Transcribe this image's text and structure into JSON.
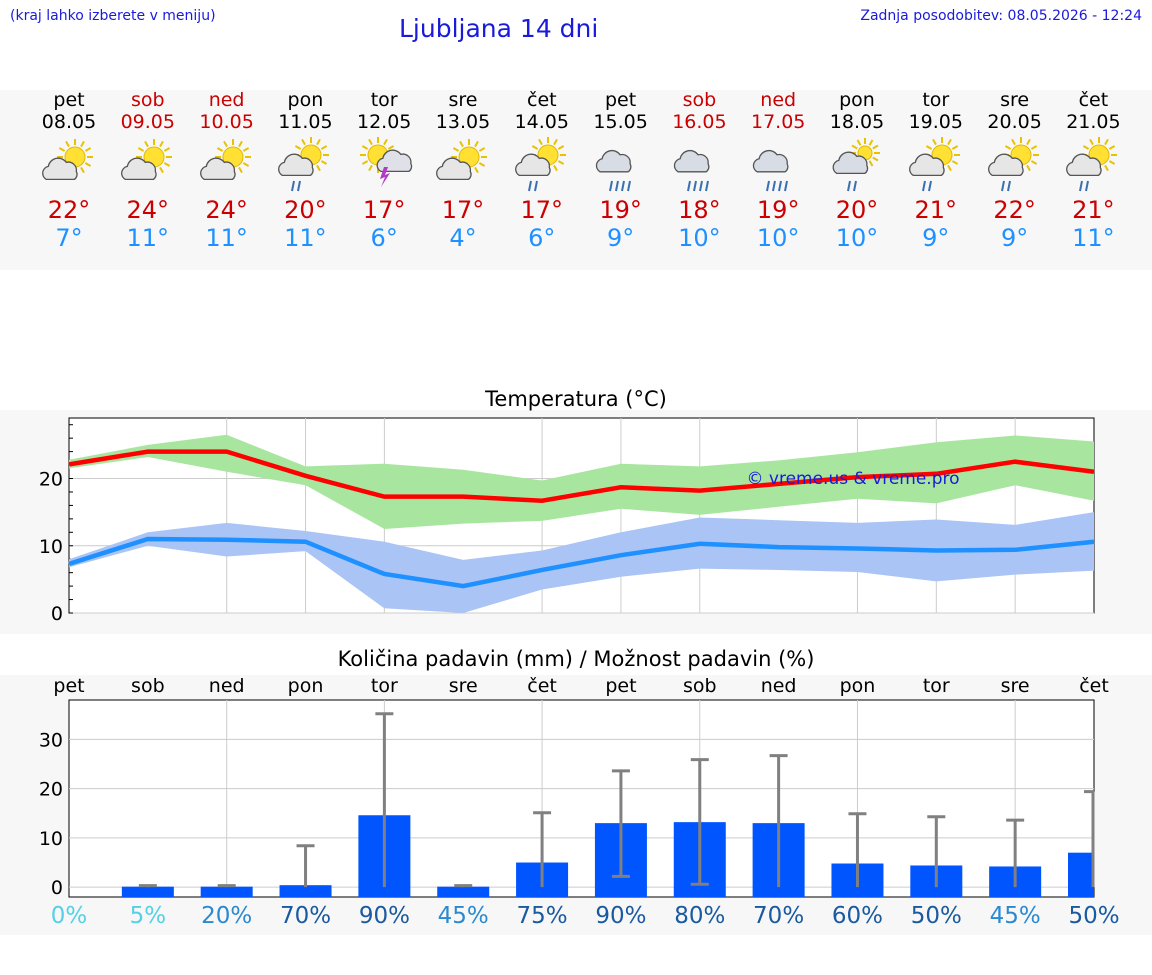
{
  "header": {
    "hint": "(kraj lahko izberete v meniju)",
    "title": "Ljubljana 14 dni",
    "updated": "Zadnja posodobitev: 08.05.2026 - 12:24"
  },
  "colors": {
    "weekday": "#000000",
    "weekend": "#cc0000",
    "temp_max": "#cc0000",
    "temp_min": "#1e90ff",
    "link": "#1a1adc"
  },
  "days": [
    {
      "name": "pet",
      "date": "08.05",
      "hi": "22°",
      "lo": "7°",
      "weekend": false,
      "icon": "sun-cloud-icon"
    },
    {
      "name": "sob",
      "date": "09.05",
      "hi": "24°",
      "lo": "11°",
      "weekend": true,
      "icon": "sun-cloud-icon"
    },
    {
      "name": "ned",
      "date": "10.05",
      "hi": "24°",
      "lo": "11°",
      "weekend": true,
      "icon": "sun-cloud-icon"
    },
    {
      "name": "pon",
      "date": "11.05",
      "hi": "20°",
      "lo": "11°",
      "weekend": false,
      "icon": "sun-rain-icon"
    },
    {
      "name": "tor",
      "date": "12.05",
      "hi": "17°",
      "lo": "6°",
      "weekend": false,
      "icon": "sun-thunder-icon"
    },
    {
      "name": "sre",
      "date": "13.05",
      "hi": "17°",
      "lo": "4°",
      "weekend": false,
      "icon": "sun-cloud-icon"
    },
    {
      "name": "čet",
      "date": "14.05",
      "hi": "17°",
      "lo": "6°",
      "weekend": false,
      "icon": "sun-rain-icon"
    },
    {
      "name": "pet",
      "date": "15.05",
      "hi": "19°",
      "lo": "9°",
      "weekend": false,
      "icon": "heavy-rain-icon"
    },
    {
      "name": "sob",
      "date": "16.05",
      "hi": "18°",
      "lo": "10°",
      "weekend": true,
      "icon": "heavy-rain-icon"
    },
    {
      "name": "ned",
      "date": "17.05",
      "hi": "19°",
      "lo": "10°",
      "weekend": true,
      "icon": "heavy-rain-icon"
    },
    {
      "name": "pon",
      "date": "18.05",
      "hi": "20°",
      "lo": "10°",
      "weekend": false,
      "icon": "cloud-rain-icon"
    },
    {
      "name": "tor",
      "date": "19.05",
      "hi": "21°",
      "lo": "9°",
      "weekend": false,
      "icon": "sun-rain-icon"
    },
    {
      "name": "sre",
      "date": "20.05",
      "hi": "22°",
      "lo": "9°",
      "weekend": false,
      "icon": "sun-rain-icon"
    },
    {
      "name": "čet",
      "date": "21.05",
      "hi": "21°",
      "lo": "11°",
      "weekend": false,
      "icon": "sun-rain-icon"
    }
  ],
  "chart_data": [
    {
      "type": "line",
      "title": "Temperatura (°C)",
      "watermark": "© vreme.us & vreme.pro",
      "x": [
        "08.05",
        "09.05",
        "10.05",
        "11.05",
        "12.05",
        "13.05",
        "14.05",
        "15.05",
        "16.05",
        "17.05",
        "18.05",
        "19.05",
        "20.05",
        "21.05"
      ],
      "ylim": [
        0,
        29
      ],
      "yticks": [
        0,
        10,
        20
      ],
      "grid": true,
      "series": [
        {
          "role": "max",
          "color": "#ff0000",
          "values": [
            22.1,
            24.0,
            24.0,
            20.4,
            17.3,
            17.3,
            16.7,
            18.7,
            18.2,
            19.2,
            20.2,
            20.7,
            22.5,
            21.0
          ]
        },
        {
          "role": "max-range",
          "color": "#a8e6a0",
          "low": [
            21.5,
            23.2,
            21.0,
            19.0,
            12.5,
            13.3,
            13.7,
            15.5,
            14.6,
            15.8,
            17.0,
            16.3,
            19.0,
            16.7
          ],
          "high": [
            22.8,
            25.0,
            26.5,
            21.8,
            22.2,
            21.3,
            19.7,
            22.2,
            21.8,
            22.7,
            23.9,
            25.4,
            26.4,
            25.5
          ]
        },
        {
          "role": "min",
          "color": "#1e90ff",
          "values": [
            7.3,
            11.0,
            10.9,
            10.6,
            5.8,
            4.0,
            6.4,
            8.6,
            10.3,
            9.8,
            9.6,
            9.3,
            9.4,
            10.6
          ]
        },
        {
          "role": "min-range",
          "color": "#a9c4f5",
          "low": [
            6.8,
            10.0,
            8.4,
            9.2,
            0.7,
            0.0,
            3.5,
            5.4,
            6.6,
            6.4,
            6.1,
            4.7,
            5.7,
            6.3
          ],
          "high": [
            8.0,
            12.0,
            13.4,
            12.2,
            10.6,
            7.9,
            9.3,
            12.0,
            14.2,
            13.8,
            13.4,
            13.9,
            13.1,
            15.0
          ]
        }
      ]
    },
    {
      "type": "bar",
      "title": "Količina padavin (mm) / Možnost padavin (%)",
      "categories": [
        "pet",
        "sob",
        "ned",
        "pon",
        "tor",
        "sre",
        "čet",
        "pet",
        "sob",
        "ned",
        "pon",
        "tor",
        "sre",
        "čet"
      ],
      "ylim": [
        -2,
        38
      ],
      "yticks": [
        0,
        10,
        20,
        30
      ],
      "grid": true,
      "bar_color": "#0055ff",
      "values": [
        0.0,
        0.1,
        0.1,
        0.4,
        14.6,
        0.1,
        5.0,
        13.0,
        13.2,
        13.0,
        4.8,
        4.4,
        4.2,
        7.0
      ],
      "error_low": [
        0.0,
        0.0,
        0.0,
        0.0,
        0.0,
        0.0,
        0.0,
        2.2,
        0.6,
        0.0,
        0.0,
        0.0,
        0.0,
        0.0
      ],
      "error_high": [
        0.0,
        0.3,
        0.3,
        8.4,
        35.2,
        0.3,
        15.1,
        23.6,
        25.9,
        26.7,
        14.9,
        14.3,
        13.6,
        19.4
      ],
      "chance": [
        "0%",
        "5%",
        "20%",
        "70%",
        "90%",
        "45%",
        "75%",
        "90%",
        "80%",
        "70%",
        "60%",
        "50%",
        "45%",
        "50%"
      ],
      "chance_colors": [
        "#55d0e6",
        "#55d0e6",
        "#2a8ad0",
        "#1a5aa0",
        "#1a5aa0",
        "#2a8ad0",
        "#1a5aa0",
        "#1a5aa0",
        "#1a5aa0",
        "#1a5aa0",
        "#1a5aa0",
        "#1a5aa0",
        "#2a8ad0",
        "#1a5aa0"
      ]
    }
  ]
}
